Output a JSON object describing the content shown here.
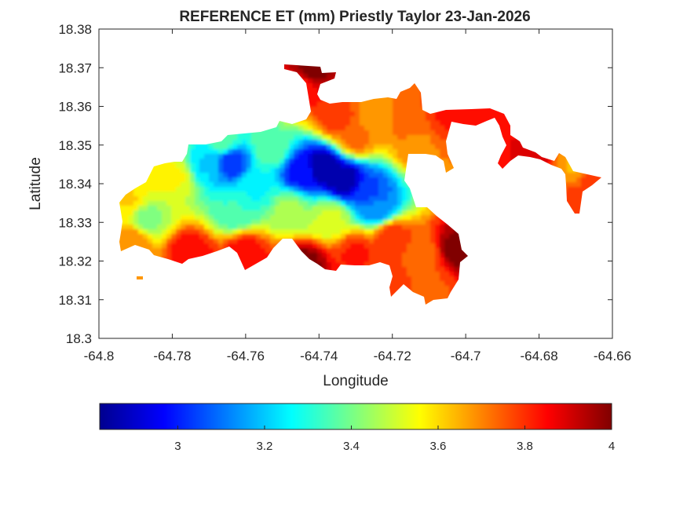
{
  "chart_data": {
    "type": "heatmap",
    "title": "REFERENCE ET (mm) Priestly Taylor 23-Jan-2026",
    "xlabel": "Longitude",
    "ylabel": "Latitude",
    "xlim": [
      -64.8,
      -64.66
    ],
    "ylim": [
      18.3,
      18.38
    ],
    "x_ticks": [
      -64.8,
      -64.78,
      -64.76,
      -64.74,
      -64.72,
      -64.7,
      -64.68,
      -64.66
    ],
    "x_tick_labels": [
      "-64.8",
      "-64.78",
      "-64.76",
      "-64.74",
      "-64.72",
      "-64.7",
      "-64.68",
      "-64.66"
    ],
    "y_ticks": [
      18.3,
      18.31,
      18.32,
      18.33,
      18.34,
      18.35,
      18.36,
      18.37,
      18.38
    ],
    "y_tick_labels": [
      "18.3",
      "18.31",
      "18.32",
      "18.33",
      "18.34",
      "18.35",
      "18.36",
      "18.37",
      "18.38"
    ],
    "grid": false,
    "colormap": "jet",
    "colorbar": {
      "placement": "bottom",
      "clim": [
        2.82,
        4.0
      ],
      "ticks": [
        3.0,
        3.2,
        3.4,
        3.6,
        3.8,
        4.0
      ],
      "tick_labels": [
        "3",
        "3.2",
        "3.4",
        "3.6",
        "3.8",
        "4"
      ]
    },
    "field_points": [
      {
        "lon": -64.739,
        "lat": 18.3445,
        "value": 2.85
      },
      {
        "lon": -64.733,
        "lat": 18.341,
        "value": 2.85
      },
      {
        "lon": -64.745,
        "lat": 18.343,
        "value": 2.98
      },
      {
        "lon": -64.726,
        "lat": 18.338,
        "value": 3.05
      },
      {
        "lon": -64.724,
        "lat": 18.334,
        "value": 3.12
      },
      {
        "lon": -64.764,
        "lat": 18.3455,
        "value": 3.02
      },
      {
        "lon": -64.771,
        "lat": 18.345,
        "value": 3.22
      },
      {
        "lon": -64.757,
        "lat": 18.339,
        "value": 3.27
      },
      {
        "lon": -64.763,
        "lat": 18.333,
        "value": 3.33
      },
      {
        "lon": -64.748,
        "lat": 18.333,
        "value": 3.45
      },
      {
        "lon": -64.737,
        "lat": 18.331,
        "value": 3.5
      },
      {
        "lon": -64.753,
        "lat": 18.349,
        "value": 3.38
      },
      {
        "lon": -64.766,
        "lat": 18.351,
        "value": 3.35
      },
      {
        "lon": -64.779,
        "lat": 18.342,
        "value": 3.55
      },
      {
        "lon": -64.787,
        "lat": 18.331,
        "value": 3.42
      },
      {
        "lon": -64.792,
        "lat": 18.336,
        "value": 3.6
      },
      {
        "lon": -64.785,
        "lat": 18.344,
        "value": 3.58
      },
      {
        "lon": -64.791,
        "lat": 18.325,
        "value": 3.7
      },
      {
        "lon": -64.775,
        "lat": 18.322,
        "value": 3.85
      },
      {
        "lon": -64.76,
        "lat": 18.322,
        "value": 3.85
      },
      {
        "lon": -64.744,
        "lat": 18.319,
        "value": 4.0
      },
      {
        "lon": -64.73,
        "lat": 18.322,
        "value": 3.82
      },
      {
        "lon": -64.72,
        "lat": 18.326,
        "value": 3.8
      },
      {
        "lon": -64.712,
        "lat": 18.321,
        "value": 3.72
      },
      {
        "lon": -64.702,
        "lat": 18.323,
        "value": 4.0
      },
      {
        "lon": -64.71,
        "lat": 18.313,
        "value": 3.75
      },
      {
        "lon": -64.72,
        "lat": 18.315,
        "value": 3.78
      },
      {
        "lon": -64.73,
        "lat": 18.352,
        "value": 3.72
      },
      {
        "lon": -64.735,
        "lat": 18.357,
        "value": 3.8
      },
      {
        "lon": -64.745,
        "lat": 18.365,
        "value": 3.85
      },
      {
        "lon": -64.742,
        "lat": 18.37,
        "value": 4.0
      },
      {
        "lon": -64.725,
        "lat": 18.357,
        "value": 3.68
      },
      {
        "lon": -64.715,
        "lat": 18.357,
        "value": 3.75
      },
      {
        "lon": -64.713,
        "lat": 18.35,
        "value": 3.7
      },
      {
        "lon": -64.705,
        "lat": 18.358,
        "value": 3.82
      },
      {
        "lon": -64.69,
        "lat": 18.357,
        "value": 3.85
      },
      {
        "lon": -64.68,
        "lat": 18.349,
        "value": 3.9
      },
      {
        "lon": -64.671,
        "lat": 18.345,
        "value": 3.65
      },
      {
        "lon": -64.669,
        "lat": 18.335,
        "value": 3.78
      },
      {
        "lon": -64.664,
        "lat": 18.341,
        "value": 3.8
      }
    ]
  }
}
